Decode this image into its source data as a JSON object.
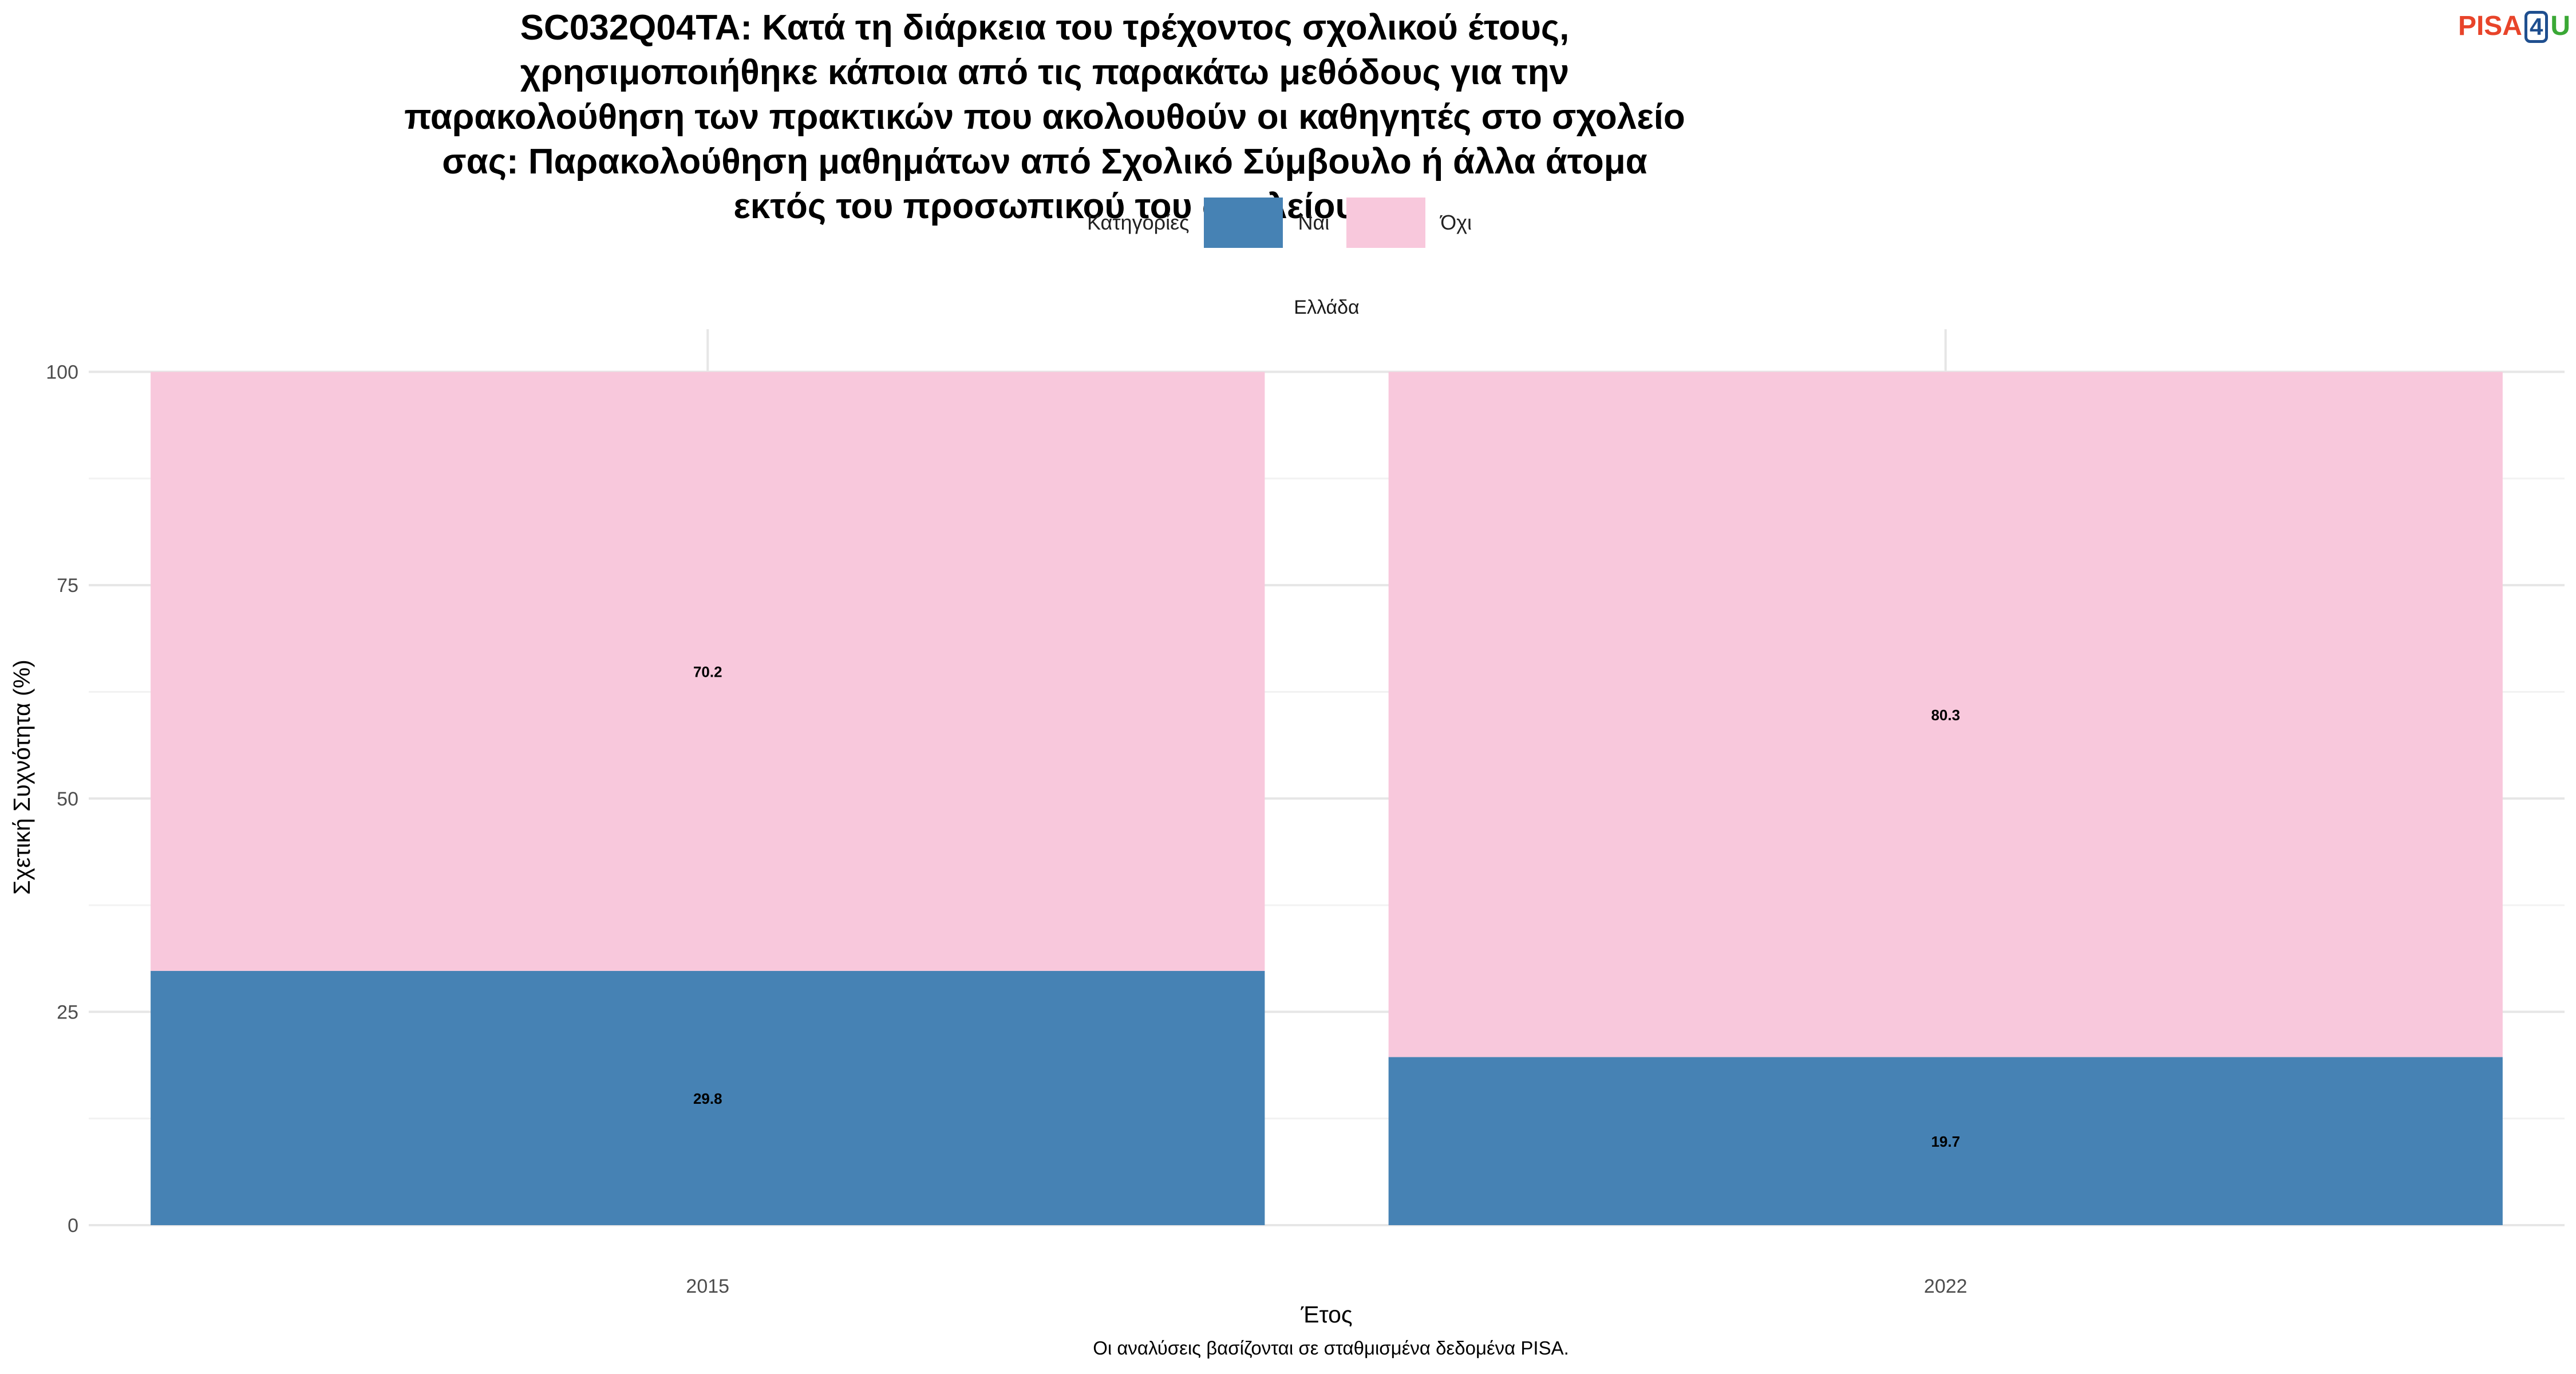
{
  "title": "SC032Q04TA: Κατά τη διάρκεια του τρέχοντος σχολικού έτους, χρησιμοποιήθηκε κάποια από τις παρακάτω μεθόδους για την παρακολούθηση των πρακτικών που ακολουθούν οι καθηγητές στο σχολείο σας: Παρακολούθηση μαθημάτων από Σχολικό Σύμβουλο ή άλλα άτομα εκτός του προσωπικού του σχολείου",
  "logo": {
    "part1": "PISA",
    "part2": "4",
    "part3": "U"
  },
  "legend": {
    "title": "Κατηγορίες",
    "placement": "top",
    "items": [
      {
        "label": "Ναι",
        "color": "#4682b4"
      },
      {
        "label": "Όχι",
        "color": "#f8c8dc"
      }
    ]
  },
  "caption": "Οι αναλύσεις βασίζονται σε σταθμισμένα δεδομένα PISA.",
  "chart_data": {
    "type": "bar",
    "stacked": true,
    "facet": "Ελλάδα",
    "categories": [
      "2015",
      "2022"
    ],
    "series": [
      {
        "name": "Ναι",
        "values": [
          29.8,
          19.7
        ],
        "color": "#4682b4"
      },
      {
        "name": "Όχι",
        "values": [
          70.2,
          80.3
        ],
        "color": "#f8c8dc"
      }
    ],
    "xlabel": "Έτος",
    "ylabel": "Σχετική Συχνότητα (%)",
    "ylim": [
      0,
      100
    ],
    "yticks": [
      0,
      25,
      50,
      75,
      100
    ],
    "grid": true
  }
}
